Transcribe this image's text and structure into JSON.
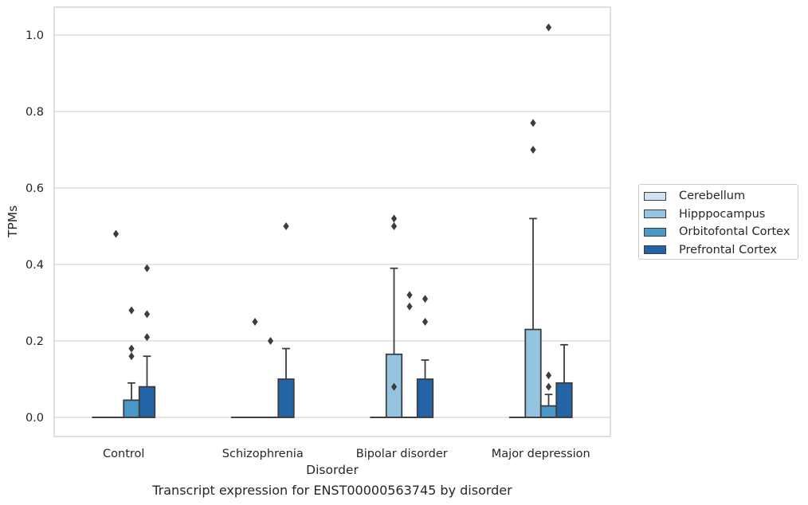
{
  "chart_data": {
    "type": "box",
    "xlabel": "Disorder",
    "ylabel": "TPMs",
    "caption": "Transcript expression for ENST00000563745 by disorder",
    "categories": [
      "Control",
      "Schizophrenia",
      "Bipolar disorder",
      "Major depression"
    ],
    "ylim": [
      -0.05,
      1.07
    ],
    "yticks": [
      "0.0",
      "0.2",
      "0.4",
      "0.6",
      "0.8",
      "1.0"
    ],
    "grid": true,
    "legend_position": "right",
    "colors": {
      "Cerebellum": "#d0e1f2",
      "Hipppocampus": "#94c4df",
      "Orbitofontal Cortex": "#4a98c9",
      "Prefrontal Cortex": "#2264a6"
    },
    "series": [
      {
        "name": "Cerebellum",
        "boxes": [
          {
            "q1": 0,
            "median": 0,
            "q3": 0,
            "whisker_low": 0,
            "whisker_high": 0,
            "outliers": []
          },
          {
            "q1": 0,
            "median": 0,
            "q3": 0,
            "whisker_low": 0,
            "whisker_high": 0,
            "outliers": []
          },
          {
            "q1": 0,
            "median": 0,
            "q3": 0,
            "whisker_low": 0,
            "whisker_high": 0,
            "outliers": []
          },
          {
            "q1": 0,
            "median": 0,
            "q3": 0,
            "whisker_low": 0,
            "whisker_high": 0,
            "outliers": []
          }
        ]
      },
      {
        "name": "Hipppocampus",
        "boxes": [
          {
            "q1": 0,
            "median": 0,
            "q3": 0,
            "whisker_low": 0,
            "whisker_high": 0,
            "outliers": [
              0.48
            ]
          },
          {
            "q1": 0,
            "median": 0,
            "q3": 0,
            "whisker_low": 0,
            "whisker_high": 0,
            "outliers": [
              0.25
            ]
          },
          {
            "q1": 0,
            "median": 0,
            "q3": 0.165,
            "whisker_low": 0,
            "whisker_high": 0.39,
            "outliers": [
              0.52,
              0.5,
              0.08
            ]
          },
          {
            "q1": 0,
            "median": 0,
            "q3": 0.23,
            "whisker_low": 0,
            "whisker_high": 0.52,
            "outliers": [
              0.77,
              0.7
            ]
          }
        ]
      },
      {
        "name": "Orbitofontal Cortex",
        "boxes": [
          {
            "q1": 0,
            "median": 0,
            "q3": 0.045,
            "whisker_low": 0,
            "whisker_high": 0.09,
            "outliers": [
              0.28,
              0.18,
              0.16
            ]
          },
          {
            "q1": 0,
            "median": 0,
            "q3": 0,
            "whisker_low": 0,
            "whisker_high": 0,
            "outliers": [
              0.2
            ]
          },
          {
            "q1": 0,
            "median": 0,
            "q3": 0,
            "whisker_low": 0,
            "whisker_high": 0,
            "outliers": [
              0.32,
              0.29
            ]
          },
          {
            "q1": 0,
            "median": 0,
            "q3": 0.03,
            "whisker_low": 0,
            "whisker_high": 0.06,
            "outliers": [
              1.02,
              0.11,
              0.08
            ]
          }
        ]
      },
      {
        "name": "Prefrontal Cortex",
        "boxes": [
          {
            "q1": 0,
            "median": 0,
            "q3": 0.08,
            "whisker_low": 0,
            "whisker_high": 0.16,
            "outliers": [
              0.39,
              0.27,
              0.21
            ]
          },
          {
            "q1": 0,
            "median": 0,
            "q3": 0.1,
            "whisker_low": 0,
            "whisker_high": 0.18,
            "outliers": [
              0.5
            ]
          },
          {
            "q1": 0,
            "median": 0,
            "q3": 0.1,
            "whisker_low": 0,
            "whisker_high": 0.15,
            "outliers": [
              0.31,
              0.25
            ]
          },
          {
            "q1": 0,
            "median": 0,
            "q3": 0.09,
            "whisker_low": 0,
            "whisker_high": 0.19,
            "outliers": []
          }
        ]
      }
    ]
  }
}
